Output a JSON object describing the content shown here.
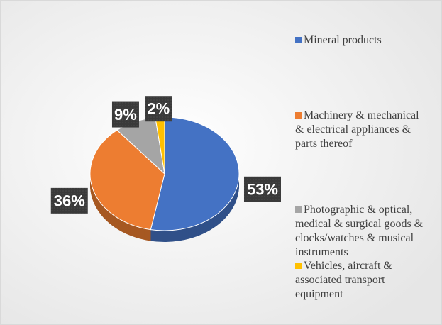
{
  "chart_data": {
    "type": "pie",
    "categories": [
      "Mineral products",
      "Machinery & mechanical & electrical appliances & parts thereof",
      "Photographic & optical, medical & surgical goods & clocks/watches & musical instruments",
      "Vehicles, aircraft & associated transport equipment"
    ],
    "values": [
      53,
      36,
      9,
      2
    ],
    "value_labels": [
      "53%",
      "36%",
      "9%",
      "2%"
    ],
    "colors": [
      "#4472c4",
      "#ed7d31",
      "#a5a5a5",
      "#ffc000"
    ],
    "legend": "right"
  }
}
